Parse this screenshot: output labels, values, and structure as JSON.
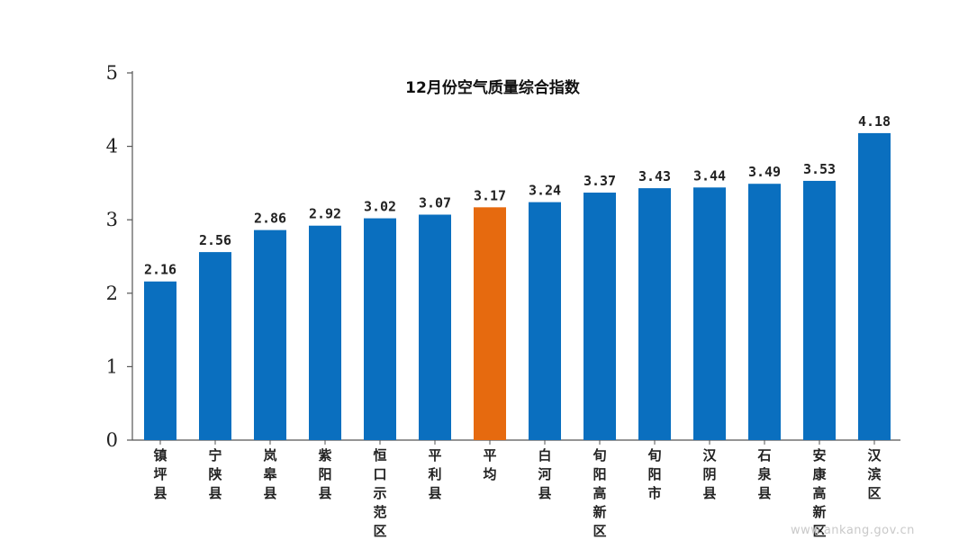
{
  "chart_data": {
    "type": "bar",
    "title": "12月份空气质量综合指数",
    "xlabel": "",
    "ylabel": "",
    "ylim": [
      0,
      5
    ],
    "yticks": [
      "0",
      "1",
      "2",
      "3",
      "4",
      "5"
    ],
    "grid": false,
    "legend": false,
    "categories": [
      "镇坪县",
      "宁陕县",
      "岚皋县",
      "紫阳县",
      "恒口示范区",
      "平利县",
      "平均",
      "白河县",
      "旬阳高新区",
      "旬阳市",
      "汉阴县",
      "石泉县",
      "安康高新区",
      "汉滨区"
    ],
    "values": [
      2.16,
      2.56,
      2.86,
      2.92,
      3.02,
      3.07,
      3.17,
      3.24,
      3.37,
      3.43,
      3.44,
      3.49,
      3.53,
      4.18
    ],
    "value_labels": [
      "2.16",
      "2.56",
      "2.86",
      "2.92",
      "3.02",
      "3.07",
      "3.17",
      "3.24",
      "3.37",
      "3.43",
      "3.44",
      "3.49",
      "3.53",
      "4.18"
    ],
    "colors": {
      "bar": "#0a6fbf",
      "highlight": "#e66a0f",
      "axis": "#555555"
    },
    "highlight_category": "平均"
  },
  "watermark": "www.ankang.gov.cn"
}
